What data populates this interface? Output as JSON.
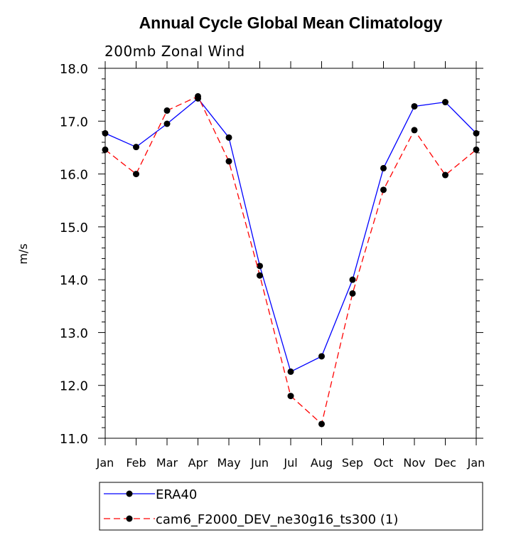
{
  "chart_data": {
    "type": "line",
    "title": "Annual Cycle Global Mean Climatology",
    "subtitle": "200mb Zonal Wind",
    "ylabel": "m/s",
    "xlabel": "",
    "categories": [
      "Jan",
      "Feb",
      "Mar",
      "Apr",
      "May",
      "Jun",
      "Jul",
      "Aug",
      "Sep",
      "Oct",
      "Nov",
      "Dec",
      "Jan"
    ],
    "ylim": [
      11.0,
      18.0
    ],
    "yticks": [
      "11.0",
      "12.0",
      "13.0",
      "14.0",
      "15.0",
      "16.0",
      "17.0",
      "18.0"
    ],
    "series": [
      {
        "name": "ERA40",
        "color": "#0000ff",
        "dash": "solid",
        "values": [
          16.77,
          16.51,
          16.95,
          17.43,
          16.69,
          14.26,
          12.26,
          12.55,
          14.0,
          16.11,
          17.28,
          17.36,
          16.77
        ]
      },
      {
        "name": "cam6_F2000_DEV_ne30g16_ts300 (1)",
        "color": "#ff0000",
        "dash": "dashed",
        "values": [
          16.46,
          16.0,
          17.2,
          17.47,
          16.24,
          14.08,
          11.8,
          11.27,
          13.74,
          15.7,
          16.83,
          15.98,
          16.46
        ]
      }
    ],
    "grid": false,
    "legend": "bottom"
  }
}
